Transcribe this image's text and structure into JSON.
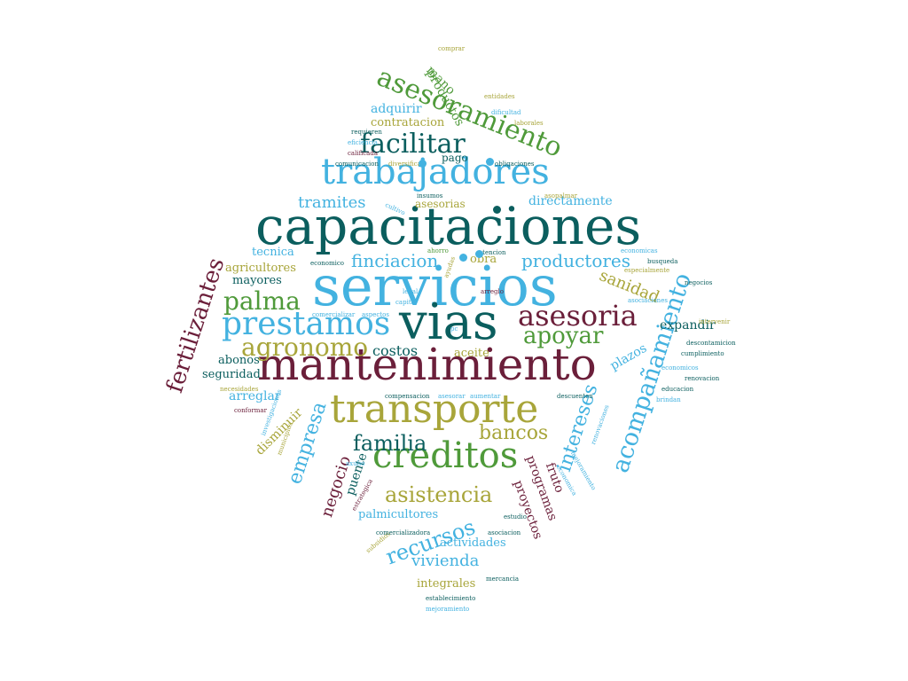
{
  "palette": {
    "teal": "#0b5e5e",
    "sky": "#43b2e0",
    "olive": "#a8a53a",
    "green": "#4f9a3a",
    "maroon": "#6b1f3a"
  },
  "words": [
    {
      "text": "servicios",
      "color": "sky"
    },
    {
      "text": "capacitaciones",
      "color": "teal"
    },
    {
      "text": "mantenimiento",
      "color": "maroon"
    },
    {
      "text": "vias",
      "color": "teal"
    },
    {
      "text": "transporte",
      "color": "olive"
    },
    {
      "text": "creditos",
      "color": "green"
    },
    {
      "text": "trabajadores",
      "color": "sky"
    },
    {
      "text": "asesoramiento",
      "color": "green"
    },
    {
      "text": "prestamos",
      "color": "sky"
    },
    {
      "text": "asesoria",
      "color": "maroon"
    },
    {
      "text": "acompañamiento",
      "color": "sky"
    },
    {
      "text": "agronomo",
      "color": "olive"
    },
    {
      "text": "facilitar",
      "color": "teal"
    },
    {
      "text": "palma",
      "color": "green"
    },
    {
      "text": "apoyar",
      "color": "green"
    },
    {
      "text": "asistencia",
      "color": "olive"
    },
    {
      "text": "recursos",
      "color": "sky"
    },
    {
      "text": "familia",
      "color": "teal"
    },
    {
      "text": "fertilizantes",
      "color": "maroon"
    },
    {
      "text": "empresa",
      "color": "sky"
    },
    {
      "text": "intereses",
      "color": "sky"
    },
    {
      "text": "bancos",
      "color": "olive"
    },
    {
      "text": "finciacion",
      "color": "sky"
    },
    {
      "text": "productores",
      "color": "sky"
    },
    {
      "text": "tramites",
      "color": "sky"
    },
    {
      "text": "sanidad",
      "color": "olive"
    },
    {
      "text": "negocio",
      "color": "maroon"
    },
    {
      "text": "vivienda",
      "color": "sky"
    },
    {
      "text": "costos",
      "color": "teal"
    },
    {
      "text": "directamente",
      "color": "sky"
    },
    {
      "text": "programas",
      "color": "maroon"
    },
    {
      "text": "plazos",
      "color": "sky"
    },
    {
      "text": "expandir",
      "color": "teal"
    },
    {
      "text": "proyectos",
      "color": "maroon"
    },
    {
      "text": "puente",
      "color": "teal"
    },
    {
      "text": "fruto",
      "color": "maroon"
    },
    {
      "text": "disminuir",
      "color": "olive"
    },
    {
      "text": "arreglar",
      "color": "sky"
    },
    {
      "text": "abonos",
      "color": "teal"
    },
    {
      "text": "seguridad",
      "color": "teal"
    },
    {
      "text": "aceite",
      "color": "olive"
    },
    {
      "text": "obra",
      "color": "olive"
    },
    {
      "text": "agricultores",
      "color": "olive"
    },
    {
      "text": "mayores",
      "color": "teal"
    },
    {
      "text": "tecnica",
      "color": "sky"
    },
    {
      "text": "palmicultores",
      "color": "sky"
    },
    {
      "text": "actividades",
      "color": "sky"
    },
    {
      "text": "integrales",
      "color": "olive"
    },
    {
      "text": "contratacion",
      "color": "olive"
    },
    {
      "text": "adquirir",
      "color": "sky"
    },
    {
      "text": "asesorias",
      "color": "olive"
    },
    {
      "text": "pago",
      "color": "teal"
    },
    {
      "text": "productos",
      "color": "green"
    },
    {
      "text": "mano",
      "color": "green"
    },
    {
      "text": "comprar",
      "color": "olive"
    },
    {
      "text": "entidades",
      "color": "olive"
    },
    {
      "text": "dificultad",
      "color": "sky"
    },
    {
      "text": "laborales",
      "color": "olive"
    },
    {
      "text": "requieren",
      "color": "teal"
    },
    {
      "text": "eficiencia",
      "color": "sky"
    },
    {
      "text": "calificada",
      "color": "maroon"
    },
    {
      "text": "comunicacion",
      "color": "teal"
    },
    {
      "text": "diversificar",
      "color": "olive"
    },
    {
      "text": "obligaciones",
      "color": "teal"
    },
    {
      "text": "insumos",
      "color": "teal"
    },
    {
      "text": "cultivo",
      "color": "sky"
    },
    {
      "text": "asopalmar",
      "color": "olive"
    },
    {
      "text": "especialmente",
      "color": "olive"
    },
    {
      "text": "ahorro",
      "color": "green"
    },
    {
      "text": "atencion",
      "color": "teal"
    },
    {
      "text": "economico",
      "color": "teal"
    },
    {
      "text": "economicas",
      "color": "sky"
    },
    {
      "text": "busqueda",
      "color": "teal"
    },
    {
      "text": "negocios",
      "color": "teal"
    },
    {
      "text": "ayudas",
      "color": "olive"
    },
    {
      "text": "arreglo",
      "color": "maroon"
    },
    {
      "text": "legal",
      "color": "sky"
    },
    {
      "text": "capital",
      "color": "sky"
    },
    {
      "text": "asociaciones",
      "color": "sky"
    },
    {
      "text": "comercializar",
      "color": "sky"
    },
    {
      "text": "aspectos",
      "color": "sky"
    },
    {
      "text": "intervenir",
      "color": "olive"
    },
    {
      "text": "descontamicion",
      "color": "teal"
    },
    {
      "text": "cumplimiento",
      "color": "teal"
    },
    {
      "text": "economicos",
      "color": "sky"
    },
    {
      "text": "renovacion",
      "color": "teal"
    },
    {
      "text": "educacion",
      "color": "teal"
    },
    {
      "text": "brindan",
      "color": "sky"
    },
    {
      "text": "pc",
      "color": "sky"
    },
    {
      "text": "necesidades",
      "color": "olive"
    },
    {
      "text": "conformar",
      "color": "maroon"
    },
    {
      "text": "compensacion",
      "color": "teal"
    },
    {
      "text": "asesorar",
      "color": "sky"
    },
    {
      "text": "aumentar",
      "color": "sky"
    },
    {
      "text": "descuenten",
      "color": "teal"
    },
    {
      "text": "investigaciones",
      "color": "sky"
    },
    {
      "text": "municipios",
      "color": "olive"
    },
    {
      "text": "renovaciones",
      "color": "sky"
    },
    {
      "text": "mejoramiento",
      "color": "sky"
    },
    {
      "text": "economica",
      "color": "sky"
    },
    {
      "text": "axulio",
      "color": "sky"
    },
    {
      "text": "estrategica",
      "color": "maroon"
    },
    {
      "text": "subsidios",
      "color": "olive"
    },
    {
      "text": "estudio",
      "color": "teal"
    },
    {
      "text": "comercializadora",
      "color": "teal"
    },
    {
      "text": "asociacion",
      "color": "teal"
    },
    {
      "text": "mercancia",
      "color": "teal"
    },
    {
      "text": "establecimiento",
      "color": "teal"
    },
    {
      "text": "mejoramiento",
      "color": "sky"
    }
  ]
}
